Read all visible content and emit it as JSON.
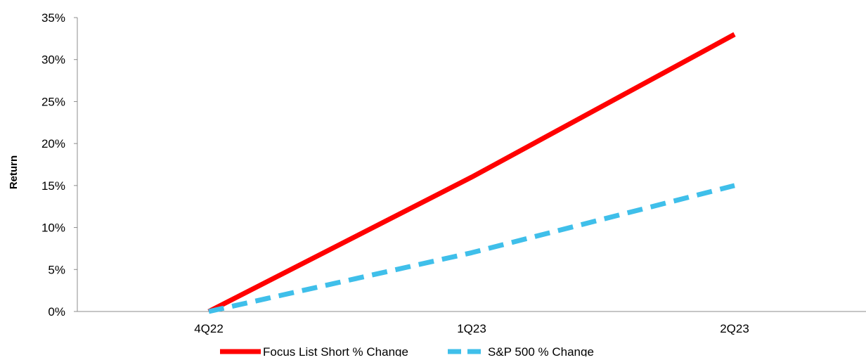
{
  "chart_data": {
    "type": "line",
    "title": "",
    "xlabel": "",
    "ylabel": "Return",
    "categories": [
      "4Q22",
      "1Q23",
      "2Q23"
    ],
    "ylim": [
      0,
      35
    ],
    "y_ticks": [
      0,
      5,
      10,
      15,
      20,
      25,
      30,
      35
    ],
    "y_tick_labels": [
      "0%",
      "5%",
      "10%",
      "15%",
      "20%",
      "25%",
      "30%",
      "35%"
    ],
    "value_format": "percent",
    "grid": false,
    "legend_position": "bottom",
    "series": [
      {
        "name": "Focus List Short % Change",
        "values": [
          0,
          16,
          33
        ],
        "color": "#ff0000",
        "dash": "solid"
      },
      {
        "name": "S&P 500 % Change",
        "values": [
          0,
          7,
          15
        ],
        "color": "#3fbfea",
        "dash": "dashed"
      }
    ]
  }
}
